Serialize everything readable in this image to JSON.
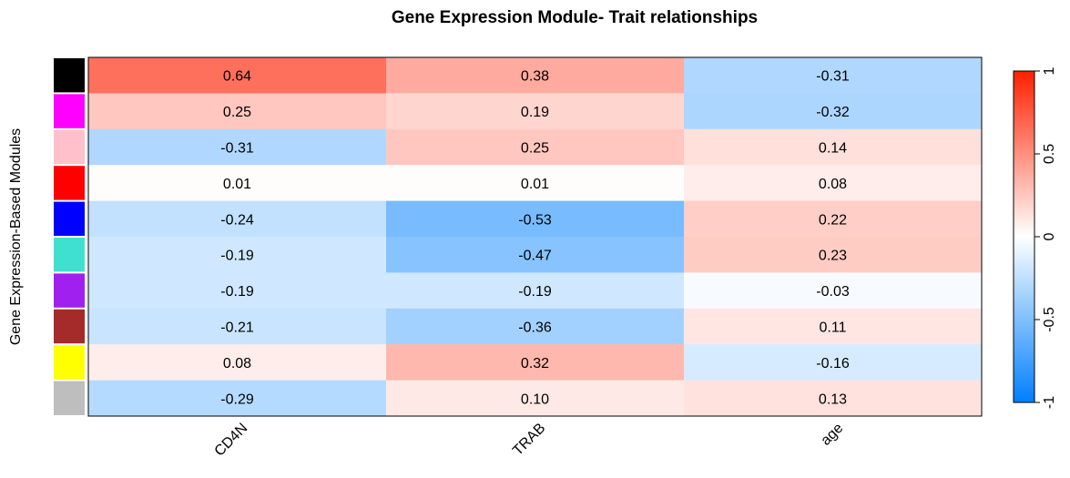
{
  "chart_data": {
    "type": "heatmap",
    "title": "Gene Expression Module- Trait relationships",
    "ylabel": "Gene Expression-Based Modules",
    "xlabel": "",
    "columns": [
      "CD4N",
      "TRAB",
      "age"
    ],
    "rows": [
      {
        "module_color": "#000000",
        "values": [
          0.64,
          0.38,
          -0.31
        ],
        "labels": [
          "0.64",
          "0.38",
          "-0.31"
        ]
      },
      {
        "module_color": "#ff00ff",
        "values": [
          0.25,
          0.19,
          -0.32
        ],
        "labels": [
          "0.25",
          "0.19",
          "-0.32"
        ]
      },
      {
        "module_color": "#ffc0cb",
        "values": [
          -0.31,
          0.25,
          0.14
        ],
        "labels": [
          "-0.31",
          "0.25",
          "0.14"
        ]
      },
      {
        "module_color": "#ff0000",
        "values": [
          0.01,
          0.01,
          0.08
        ],
        "labels": [
          "0.01",
          "0.01",
          "0.08"
        ]
      },
      {
        "module_color": "#0000ff",
        "values": [
          -0.24,
          -0.53,
          0.22
        ],
        "labels": [
          "-0.24",
          "-0.53",
          "0.22"
        ]
      },
      {
        "module_color": "#40e0d0",
        "values": [
          -0.19,
          -0.47,
          0.23
        ],
        "labels": [
          "-0.19",
          "-0.47",
          "0.23"
        ]
      },
      {
        "module_color": "#a020f0",
        "values": [
          -0.19,
          -0.19,
          -0.03
        ],
        "labels": [
          "-0.19",
          "-0.19",
          "-0.03"
        ]
      },
      {
        "module_color": "#a52a2a",
        "values": [
          -0.21,
          -0.36,
          0.11
        ],
        "labels": [
          "-0.21",
          "-0.36",
          "0.11"
        ]
      },
      {
        "module_color": "#ffff00",
        "values": [
          0.08,
          0.32,
          -0.16
        ],
        "labels": [
          "0.08",
          "0.32",
          "-0.16"
        ]
      },
      {
        "module_color": "#bebebe",
        "values": [
          -0.29,
          0.1,
          0.13
        ],
        "labels": [
          "-0.29",
          "0.10",
          "0.13"
        ]
      }
    ],
    "color_scale": {
      "range": [
        -1,
        1
      ],
      "low_color": "#007fff",
      "mid_color": "#ffffff",
      "high_color": "#ff2000",
      "ticks": [
        "-1",
        "-0.5",
        "0",
        "0.5",
        "1"
      ]
    },
    "legend_position": "right"
  }
}
